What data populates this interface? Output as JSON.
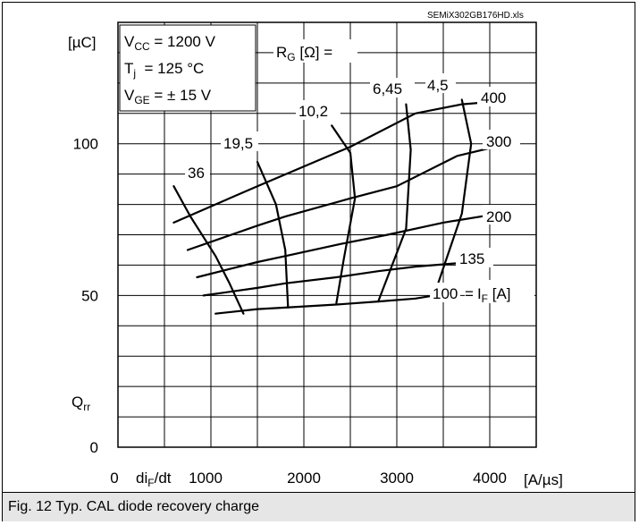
{
  "source_file": "SEMiX302GB176HD.xls",
  "conditions": [
    {
      "name": "V",
      "sub": "CC",
      "rest": " = 1200 V"
    },
    {
      "name": "T",
      "sub": "j",
      "rest": "  = 125 °C"
    },
    {
      "name": "V",
      "sub": "GE",
      "rest": " = ± 15 V"
    }
  ],
  "rg_label": {
    "main": "R",
    "sub": "G",
    "rest": " [Ω] ="
  },
  "if_label": {
    "eq": "=",
    "main": "I",
    "sub": "F",
    "rest": " [A]"
  },
  "y_unit": "[µC]",
  "y_quantity": {
    "main": "Q",
    "sub": "rr"
  },
  "x_quantity": {
    "pre": "d",
    "main": "i",
    "sub": "F",
    "rest": "/dt"
  },
  "x_unit": "[A/µs]",
  "caption": "Fig. 12 Typ. CAL diode recovery charge",
  "chart_data": {
    "type": "line",
    "title": "",
    "xlabel": "diF/dt [A/µs]",
    "ylabel": "Qrr [µC]",
    "xlim": [
      0,
      4500
    ],
    "ylim": [
      0,
      140
    ],
    "x_ticks": [
      0,
      1000,
      2000,
      3000,
      4000
    ],
    "y_ticks": [
      0,
      50,
      100
    ],
    "grid": true,
    "series": [
      {
        "name": "100",
        "x": [
          1050,
          1500,
          1800,
          2350,
          2800,
          3200,
          3400
        ],
        "y": [
          44,
          45.5,
          46,
          47,
          48,
          49,
          50
        ]
      },
      {
        "name": "135",
        "x": [
          920,
          1500,
          1800,
          2350,
          2800,
          3200,
          3800
        ],
        "y": [
          50,
          52.5,
          54,
          56,
          58,
          59.5,
          61
        ]
      },
      {
        "name": "200",
        "x": [
          850,
          1500,
          1800,
          2400,
          2900,
          3500,
          4100
        ],
        "y": [
          56,
          61,
          63,
          67,
          70,
          74,
          77
        ]
      },
      {
        "name": "300",
        "x": [
          750,
          1500,
          1800,
          2500,
          3000,
          3650,
          4200
        ],
        "y": [
          65,
          73,
          76,
          82,
          86,
          96,
          100
        ]
      },
      {
        "name": "400",
        "x": [
          600,
          1500,
          2500,
          3200,
          3700,
          4100
        ],
        "y": [
          74,
          86,
          99,
          110,
          113,
          114
        ]
      },
      {
        "name": "36",
        "x": [
          600,
          780,
          1050,
          1200,
          1350
        ],
        "y": [
          86,
          76,
          63,
          54,
          44
        ]
      },
      {
        "name": "19,5",
        "x": [
          1500,
          1700,
          1800,
          1830
        ],
        "y": [
          94,
          80,
          65,
          46
        ]
      },
      {
        "name": "10,2",
        "x": [
          2300,
          2500,
          2550,
          2430,
          2350
        ],
        "y": [
          106,
          97,
          82,
          62,
          47.5
        ]
      },
      {
        "name": "6,45",
        "x": [
          3100,
          3150,
          3100,
          2800
        ],
        "y": [
          113,
          98,
          72,
          48
        ]
      },
      {
        "name": "4,5",
        "x": [
          3700,
          3800,
          3700,
          3400
        ],
        "y": [
          114.5,
          100,
          77,
          50
        ]
      }
    ]
  }
}
